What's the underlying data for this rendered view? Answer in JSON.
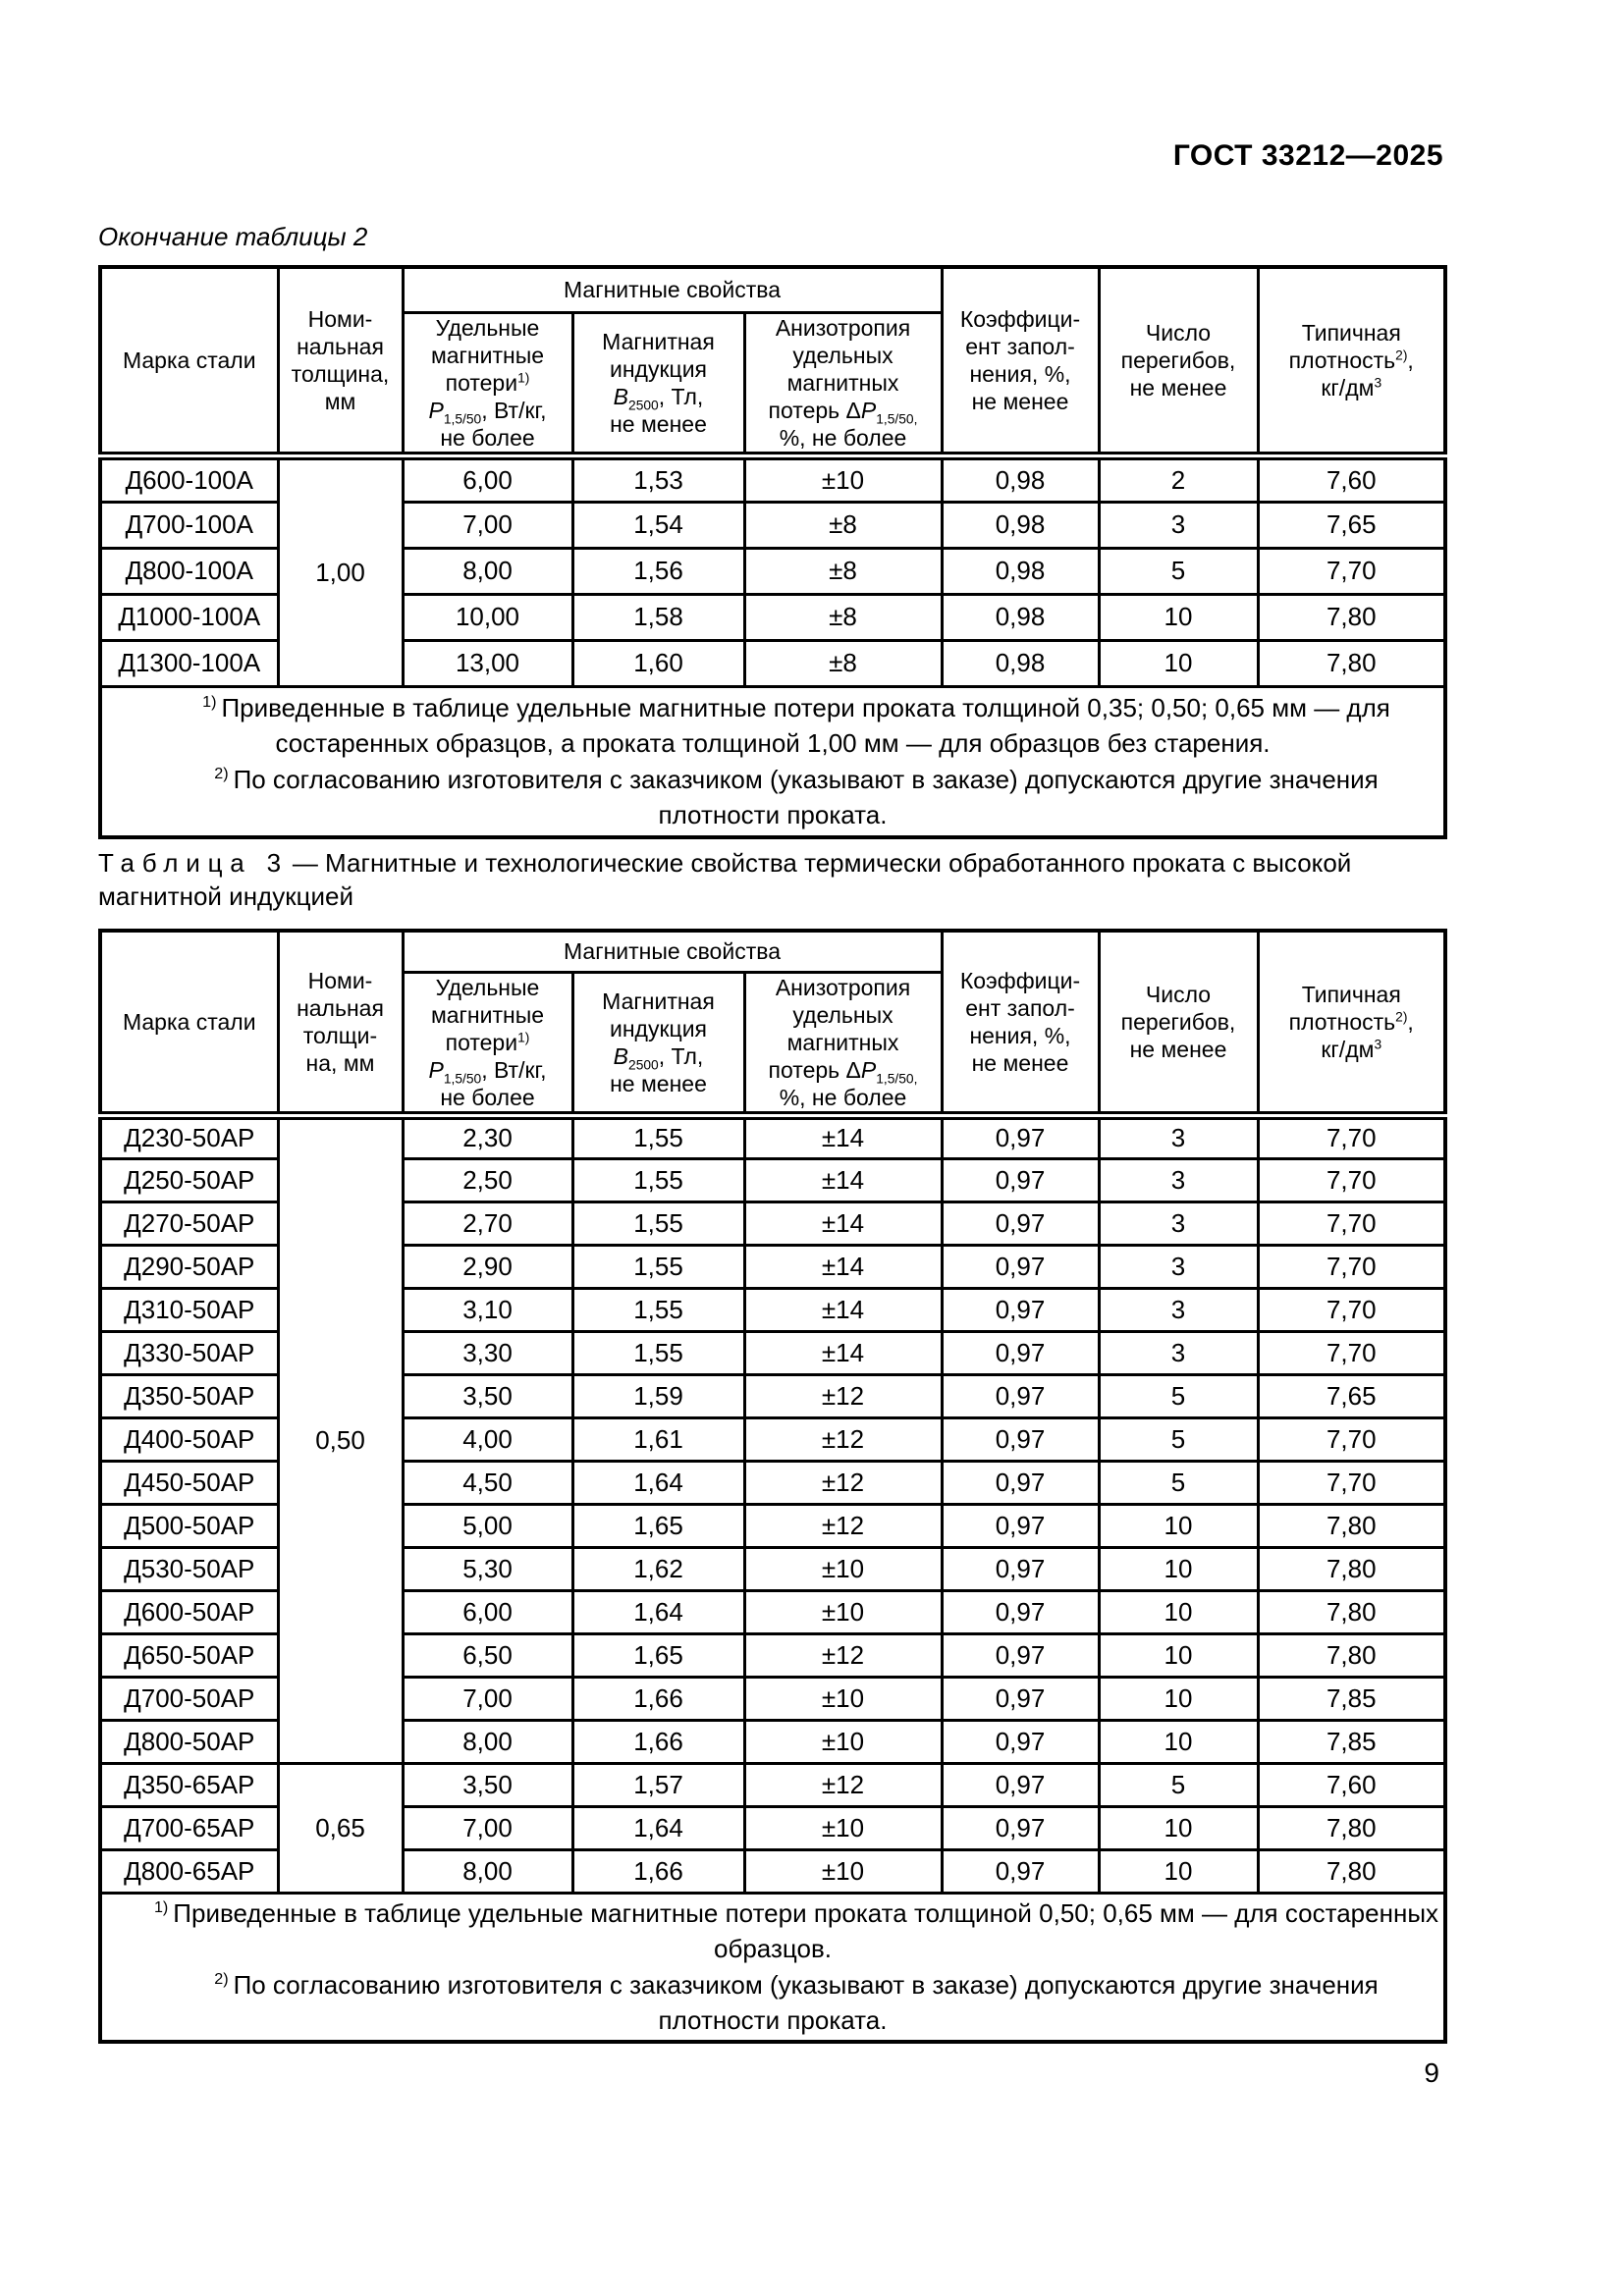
{
  "page": {
    "doc_number": "ГОСТ 33212—2025",
    "page_number": "9"
  },
  "table2": {
    "caption": "Окончание таблицы 2",
    "headers": {
      "marka": "Марка стали",
      "thickness_html": "Номи-<br>нальная<br>толщина,<br>мм",
      "group": "Магнитные свойства",
      "losses_html": "Удельные<br>магнитные<br>потери<sup>1)</sup><br><i>P</i><sub>1,5/50</sub>, Вт/кг,<br>не более",
      "induction_html": "Магнитная<br>индукция<br><i>B</i><sub>2500</sub>, Тл,<br>не менее",
      "anisotropy_html": "Анизотропия<br>удельных<br>магнитных<br>потерь Δ<i>P</i><sub>1,5/50,</sub><br>%, не более",
      "fill_html": "Коэффици-<br>ент запол-<br>нения, %,<br>не менее",
      "bends_html": "Число<br>перегибов,<br>не менее",
      "density_html": "Типичная<br>плотность<sup>2)</sup>,<br>кг/дм<sup>3</sup>"
    },
    "thickness_groups": [
      {
        "value": "1,00",
        "rows": 5
      }
    ],
    "rows": [
      {
        "marka": "Д600-100А",
        "losses": "6,00",
        "induction": "1,53",
        "anisotropy": "±10",
        "fill": "0,98",
        "bends": "2",
        "density": "7,60"
      },
      {
        "marka": "Д700-100А",
        "losses": "7,00",
        "induction": "1,54",
        "anisotropy": "±8",
        "fill": "0,98",
        "bends": "3",
        "density": "7,65"
      },
      {
        "marka": "Д800-100А",
        "losses": "8,00",
        "induction": "1,56",
        "anisotropy": "±8",
        "fill": "0,98",
        "bends": "5",
        "density": "7,70"
      },
      {
        "marka": "Д1000-100А",
        "losses": "10,00",
        "induction": "1,58",
        "anisotropy": "±8",
        "fill": "0,98",
        "bends": "10",
        "density": "7,80"
      },
      {
        "marka": "Д1300-100А",
        "losses": "13,00",
        "induction": "1,60",
        "anisotropy": "±8",
        "fill": "0,98",
        "bends": "10",
        "density": "7,80"
      }
    ],
    "footnotes": [
      {
        "marker": "1)",
        "text": "Приведенные в таблице удельные магнитные потери проката толщиной 0,35; 0,50; 0,65 мм — для состаренных образцов, а проката толщиной 1,00 мм — для образцов без старения."
      },
      {
        "marker": "2)",
        "text": "По согласованию изготовителя с заказчиком (указывают в заказе) допускаются другие значения плотности проката."
      }
    ]
  },
  "table3": {
    "caption_label": "Таблица 3",
    "caption_text": "— Магнитные и технологические свойства термически обработанного проката с высокой магнитной индукцией",
    "headers": {
      "marka": "Марка стали",
      "thickness_html": "Номи-<br>нальная<br>толщи-<br>на, мм",
      "group": "Магнитные свойства",
      "losses_html": "Удельные<br>магнитные<br>потери<sup>1)</sup><br><i>P</i><sub>1,5/50</sub>, Вт/кг,<br>не более",
      "induction_html": "Магнитная<br>индукция<br><i>B</i><sub>2500</sub>, Тл,<br>не менее",
      "anisotropy_html": "Анизотропия<br>удельных<br>магнитных<br>потерь Δ<i>P</i><sub>1,5/50,</sub><br>%, не более",
      "fill_html": "Коэффици-<br>ент запол-<br>нения, %,<br>не менее",
      "bends_html": "Число<br>перегибов,<br>не менее",
      "density_html": "Типичная<br>плотность<sup>2)</sup>,<br>кг/дм<sup>3</sup>"
    },
    "thickness_groups": [
      {
        "value": "0,50",
        "rows": 15
      },
      {
        "value": "0,65",
        "rows": 3
      }
    ],
    "rows": [
      {
        "marka": "Д230-50АР",
        "losses": "2,30",
        "induction": "1,55",
        "anisotropy": "±14",
        "fill": "0,97",
        "bends": "3",
        "density": "7,70"
      },
      {
        "marka": "Д250-50АР",
        "losses": "2,50",
        "induction": "1,55",
        "anisotropy": "±14",
        "fill": "0,97",
        "bends": "3",
        "density": "7,70"
      },
      {
        "marka": "Д270-50АР",
        "losses": "2,70",
        "induction": "1,55",
        "anisotropy": "±14",
        "fill": "0,97",
        "bends": "3",
        "density": "7,70"
      },
      {
        "marka": "Д290-50АР",
        "losses": "2,90",
        "induction": "1,55",
        "anisotropy": "±14",
        "fill": "0,97",
        "bends": "3",
        "density": "7,70"
      },
      {
        "marka": "Д310-50АР",
        "losses": "3,10",
        "induction": "1,55",
        "anisotropy": "±14",
        "fill": "0,97",
        "bends": "3",
        "density": "7,70"
      },
      {
        "marka": "Д330-50АР",
        "losses": "3,30",
        "induction": "1,55",
        "anisotropy": "±14",
        "fill": "0,97",
        "bends": "3",
        "density": "7,70"
      },
      {
        "marka": "Д350-50АР",
        "losses": "3,50",
        "induction": "1,59",
        "anisotropy": "±12",
        "fill": "0,97",
        "bends": "5",
        "density": "7,65"
      },
      {
        "marka": "Д400-50АР",
        "losses": "4,00",
        "induction": "1,61",
        "anisotropy": "±12",
        "fill": "0,97",
        "bends": "5",
        "density": "7,70"
      },
      {
        "marka": "Д450-50АР",
        "losses": "4,50",
        "induction": "1,64",
        "anisotropy": "±12",
        "fill": "0,97",
        "bends": "5",
        "density": "7,70"
      },
      {
        "marka": "Д500-50АР",
        "losses": "5,00",
        "induction": "1,65",
        "anisotropy": "±12",
        "fill": "0,97",
        "bends": "10",
        "density": "7,80"
      },
      {
        "marka": "Д530-50АР",
        "losses": "5,30",
        "induction": "1,62",
        "anisotropy": "±10",
        "fill": "0,97",
        "bends": "10",
        "density": "7,80"
      },
      {
        "marka": "Д600-50АР",
        "losses": "6,00",
        "induction": "1,64",
        "anisotropy": "±10",
        "fill": "0,97",
        "bends": "10",
        "density": "7,80"
      },
      {
        "marka": "Д650-50АР",
        "losses": "6,50",
        "induction": "1,65",
        "anisotropy": "±12",
        "fill": "0,97",
        "bends": "10",
        "density": "7,80"
      },
      {
        "marka": "Д700-50АР",
        "losses": "7,00",
        "induction": "1,66",
        "anisotropy": "±10",
        "fill": "0,97",
        "bends": "10",
        "density": "7,85"
      },
      {
        "marka": "Д800-50АР",
        "losses": "8,00",
        "induction": "1,66",
        "anisotropy": "±10",
        "fill": "0,97",
        "bends": "10",
        "density": "7,85"
      },
      {
        "marka": "Д350-65АР",
        "losses": "3,50",
        "induction": "1,57",
        "anisotropy": "±12",
        "fill": "0,97",
        "bends": "5",
        "density": "7,60"
      },
      {
        "marka": "Д700-65АР",
        "losses": "7,00",
        "induction": "1,64",
        "anisotropy": "±10",
        "fill": "0,97",
        "bends": "10",
        "density": "7,80"
      },
      {
        "marka": "Д800-65АР",
        "losses": "8,00",
        "induction": "1,66",
        "anisotropy": "±10",
        "fill": "0,97",
        "bends": "10",
        "density": "7,80"
      }
    ],
    "footnotes": [
      {
        "marker": "1)",
        "text": "Приведенные в таблице удельные магнитные потери проката толщиной 0,50; 0,65 мм — для состаренных образцов."
      },
      {
        "marker": "2)",
        "text": "По согласованию изготовителя с заказчиком (указывают в заказе) допускаются другие значения плотности проката."
      }
    ]
  }
}
